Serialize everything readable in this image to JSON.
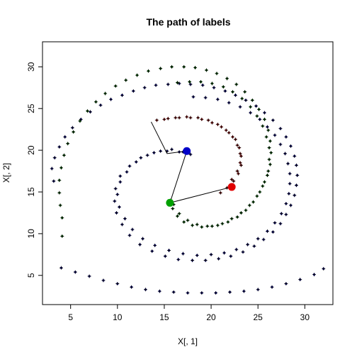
{
  "chart_data": {
    "type": "scatter",
    "title": "The path of labels",
    "xlabel": "X[, 1]",
    "ylabel": "X[, 2]",
    "xlim": [
      2,
      33
    ],
    "ylim": [
      1.5,
      33
    ],
    "xticks": [
      5,
      10,
      15,
      20,
      25,
      30
    ],
    "yticks": [
      5,
      10,
      15,
      20,
      25,
      30
    ],
    "grid": false,
    "legend": "none",
    "series": [
      {
        "color": "#000080",
        "role": "spiral points",
        "points": [
          [
            17.8,
            19.5
          ],
          [
            16.6,
            19.8
          ],
          [
            15.3,
            19.9
          ],
          [
            13.9,
            19.7
          ],
          [
            12.5,
            19.1
          ],
          [
            11.3,
            18.1
          ],
          [
            10.3,
            16.9
          ],
          [
            9.8,
            15.4
          ],
          [
            9.7,
            13.9
          ],
          [
            9.9,
            12.5
          ],
          [
            10.5,
            11.1
          ],
          [
            11.3,
            9.8
          ],
          [
            12.4,
            8.7
          ],
          [
            13.7,
            7.9
          ],
          [
            15.1,
            7.3
          ],
          [
            16.5,
            6.9
          ],
          [
            18.0,
            6.8
          ],
          [
            19.4,
            6.8
          ],
          [
            20.8,
            7.0
          ],
          [
            22.1,
            7.3
          ],
          [
            23.4,
            7.8
          ],
          [
            24.6,
            8.5
          ],
          [
            25.6,
            9.3
          ],
          [
            26.6,
            10.2
          ],
          [
            27.4,
            11.2
          ],
          [
            28.0,
            12.3
          ],
          [
            28.5,
            13.4
          ],
          [
            28.9,
            14.6
          ],
          [
            29.1,
            15.8
          ],
          [
            29.2,
            17.0
          ],
          [
            29.1,
            18.2
          ],
          [
            28.9,
            19.3
          ],
          [
            28.5,
            20.5
          ],
          [
            28.0,
            21.6
          ],
          [
            27.4,
            22.6
          ],
          [
            26.6,
            23.6
          ],
          [
            25.7,
            24.5
          ],
          [
            24.8,
            25.3
          ],
          [
            23.7,
            26.0
          ],
          [
            22.6,
            26.6
          ],
          [
            21.5,
            27.1
          ],
          [
            20.3,
            27.5
          ],
          [
            19.1,
            27.8
          ],
          [
            17.8,
            27.9
          ],
          [
            16.6,
            28.0
          ],
          [
            15.4,
            27.9
          ],
          [
            14.1,
            27.8
          ],
          [
            12.9,
            27.5
          ],
          [
            11.7,
            27.1
          ],
          [
            10.5,
            26.6
          ],
          [
            9.3,
            26.1
          ],
          [
            8.2,
            25.4
          ],
          [
            7.1,
            24.6
          ],
          [
            6.1,
            23.7
          ],
          [
            5.2,
            22.7
          ],
          [
            4.4,
            21.6
          ],
          [
            3.8,
            20.4
          ],
          [
            3.3,
            19.1
          ],
          [
            3.0,
            17.8
          ],
          [
            3.2,
            16.3
          ],
          [
            17.0,
            19.8
          ],
          [
            15.8,
            20.1
          ],
          [
            14.6,
            19.9
          ],
          [
            13.2,
            19.4
          ],
          [
            12.0,
            18.6
          ],
          [
            11.0,
            17.4
          ],
          [
            10.3,
            16.2
          ],
          [
            10.0,
            14.7
          ],
          [
            10.2,
            13.2
          ],
          [
            10.8,
            11.8
          ],
          [
            11.6,
            10.5
          ],
          [
            12.7,
            9.4
          ],
          [
            14.0,
            8.6
          ],
          [
            15.5,
            8.0
          ],
          [
            17.0,
            7.6
          ],
          [
            18.5,
            7.4
          ],
          [
            20.0,
            7.5
          ],
          [
            21.4,
            7.7
          ],
          [
            22.7,
            8.1
          ],
          [
            23.9,
            8.7
          ],
          [
            25.0,
            9.4
          ],
          [
            26.0,
            10.3
          ],
          [
            26.8,
            11.3
          ],
          [
            27.5,
            12.4
          ],
          [
            28.0,
            13.6
          ],
          [
            28.3,
            14.8
          ],
          [
            28.4,
            16.0
          ],
          [
            28.4,
            17.2
          ],
          [
            28.2,
            18.4
          ],
          [
            27.9,
            19.6
          ],
          [
            27.4,
            20.7
          ],
          [
            26.8,
            21.8
          ],
          [
            26.0,
            22.8
          ],
          [
            25.2,
            23.7
          ],
          [
            24.2,
            24.5
          ],
          [
            23.1,
            25.2
          ],
          [
            21.9,
            25.7
          ],
          [
            20.7,
            26.1
          ],
          [
            19.4,
            26.3
          ],
          [
            18.1,
            26.4
          ],
          [
            4.0,
            5.9
          ],
          [
            5.5,
            5.4
          ],
          [
            7.0,
            4.9
          ],
          [
            8.5,
            4.4
          ],
          [
            10.0,
            4.0
          ],
          [
            11.5,
            3.6
          ],
          [
            13.0,
            3.3
          ],
          [
            14.5,
            3.1
          ],
          [
            16.0,
            3.0
          ],
          [
            17.5,
            2.9
          ],
          [
            19.0,
            2.9
          ],
          [
            20.5,
            2.9
          ],
          [
            22.0,
            3.0
          ],
          [
            23.5,
            3.1
          ],
          [
            25.0,
            3.3
          ],
          [
            26.5,
            3.6
          ],
          [
            28.0,
            4.0
          ],
          [
            29.5,
            4.5
          ],
          [
            31.0,
            5.1
          ],
          [
            32.0,
            5.8
          ]
        ]
      },
      {
        "color": "#006400",
        "role": "spiral points",
        "points": [
          [
            15.7,
            14.0
          ],
          [
            15.9,
            13.0
          ],
          [
            16.4,
            12.1
          ],
          [
            17.1,
            11.4
          ],
          [
            18.0,
            11.0
          ],
          [
            19.0,
            10.8
          ],
          [
            20.1,
            10.9
          ],
          [
            21.2,
            11.2
          ],
          [
            22.2,
            11.8
          ],
          [
            23.2,
            12.5
          ],
          [
            24.1,
            13.4
          ],
          [
            24.9,
            14.5
          ],
          [
            25.5,
            15.7
          ],
          [
            26.0,
            17.0
          ],
          [
            26.3,
            18.3
          ],
          [
            26.4,
            19.7
          ],
          [
            26.3,
            21.1
          ],
          [
            26.1,
            22.4
          ],
          [
            25.7,
            23.7
          ],
          [
            25.1,
            24.9
          ],
          [
            24.4,
            26.0
          ],
          [
            23.6,
            27.0
          ],
          [
            22.7,
            27.9
          ],
          [
            21.7,
            28.6
          ],
          [
            20.6,
            29.2
          ],
          [
            19.5,
            29.6
          ],
          [
            18.3,
            29.9
          ],
          [
            17.1,
            30.0
          ],
          [
            15.8,
            30.0
          ],
          [
            14.6,
            29.8
          ],
          [
            13.3,
            29.5
          ],
          [
            12.1,
            29.0
          ],
          [
            10.9,
            28.4
          ],
          [
            9.8,
            27.7
          ],
          [
            8.7,
            26.8
          ],
          [
            7.7,
            25.8
          ],
          [
            6.8,
            24.7
          ],
          [
            6.0,
            23.5
          ],
          [
            5.3,
            22.2
          ],
          [
            4.7,
            20.8
          ],
          [
            4.3,
            19.4
          ],
          [
            4.0,
            17.9
          ],
          [
            3.8,
            16.4
          ],
          [
            3.8,
            14.9
          ],
          [
            3.9,
            13.4
          ],
          [
            4.1,
            11.9
          ],
          [
            4.1,
            9.7
          ],
          [
            16.0,
            13.5
          ],
          [
            16.6,
            12.4
          ],
          [
            17.5,
            11.6
          ],
          [
            18.5,
            11.1
          ],
          [
            19.6,
            10.9
          ],
          [
            20.7,
            11.0
          ],
          [
            21.8,
            11.4
          ],
          [
            22.8,
            12.0
          ],
          [
            23.7,
            12.8
          ],
          [
            24.5,
            13.8
          ],
          [
            25.2,
            15.0
          ],
          [
            25.7,
            16.2
          ],
          [
            26.1,
            17.5
          ],
          [
            26.2,
            18.9
          ],
          [
            26.2,
            20.3
          ],
          [
            25.9,
            21.6
          ],
          [
            25.5,
            22.9
          ],
          [
            24.9,
            24.1
          ],
          [
            24.2,
            25.2
          ],
          [
            23.3,
            26.2
          ],
          [
            22.3,
            27.0
          ],
          [
            21.3,
            27.6
          ],
          [
            20.1,
            28.0
          ],
          [
            18.9,
            28.2
          ],
          [
            17.7,
            28.2
          ],
          [
            16.4,
            28.1
          ]
        ]
      },
      {
        "color": "#b22222",
        "role": "spiral points",
        "points": [
          [
            14.2,
            23.6
          ],
          [
            15.4,
            23.8
          ],
          [
            16.6,
            23.9
          ],
          [
            17.8,
            23.9
          ],
          [
            19.0,
            23.7
          ],
          [
            20.1,
            23.3
          ],
          [
            21.1,
            22.8
          ],
          [
            21.9,
            22.1
          ],
          [
            22.6,
            21.3
          ],
          [
            23.0,
            20.3
          ],
          [
            23.2,
            19.3
          ],
          [
            23.2,
            18.2
          ],
          [
            22.9,
            17.2
          ],
          [
            22.4,
            16.3
          ],
          [
            21.7,
            15.5
          ],
          [
            21.0,
            14.9
          ],
          [
            15.0,
            23.7
          ],
          [
            16.2,
            23.9
          ],
          [
            17.4,
            24.0
          ],
          [
            18.6,
            23.9
          ],
          [
            19.7,
            23.6
          ],
          [
            20.7,
            23.1
          ],
          [
            21.6,
            22.4
          ],
          [
            22.3,
            21.6
          ],
          [
            22.8,
            20.6
          ],
          [
            23.1,
            19.6
          ],
          [
            23.1,
            18.5
          ],
          [
            22.8,
            17.5
          ],
          [
            22.2,
            16.5
          ]
        ]
      }
    ],
    "centers": [
      {
        "x": 17.4,
        "y": 19.9,
        "color": "#0000c8"
      },
      {
        "x": 15.6,
        "y": 13.7,
        "color": "#00a000"
      },
      {
        "x": 22.2,
        "y": 15.6,
        "color": "#e00000"
      }
    ],
    "path": [
      [
        13.6,
        23.4
      ],
      [
        15.3,
        19.6
      ],
      [
        17.4,
        19.9
      ],
      [
        15.6,
        13.7
      ],
      [
        22.2,
        15.6
      ]
    ]
  }
}
